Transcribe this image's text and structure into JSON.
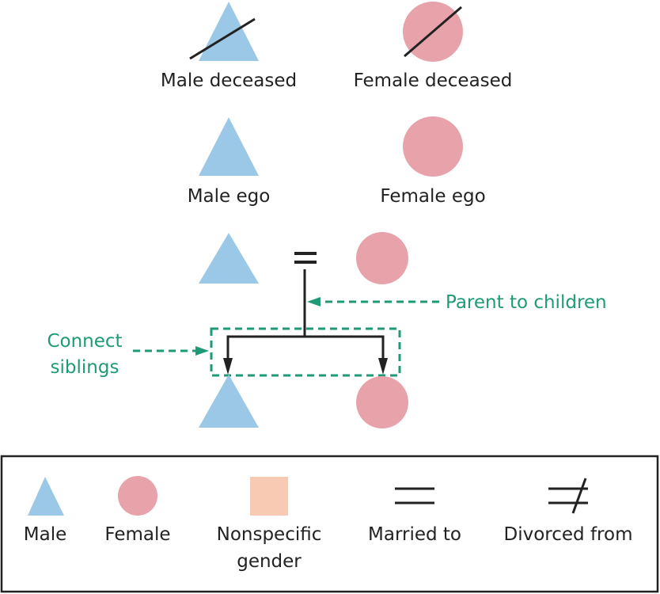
{
  "colors": {
    "male": "#9bc8e6",
    "female": "#e8a2aa",
    "nonspecific": "#f8cab4",
    "annotation": "#1f9a78",
    "line": "#222222"
  },
  "symbols": {
    "male_deceased": "Male deceased",
    "female_deceased": "Female deceased",
    "male_ego": "Male ego",
    "female_ego": "Female ego"
  },
  "annotations": {
    "parent_to_children": "Parent to children",
    "connect_siblings_line1": "Connect",
    "connect_siblings_line2": "siblings"
  },
  "legend": {
    "male": "Male",
    "female": "Female",
    "nonspecific_line1": "Nonspecific",
    "nonspecific_line2": "gender",
    "married": "Married to",
    "divorced": "Divorced from"
  }
}
